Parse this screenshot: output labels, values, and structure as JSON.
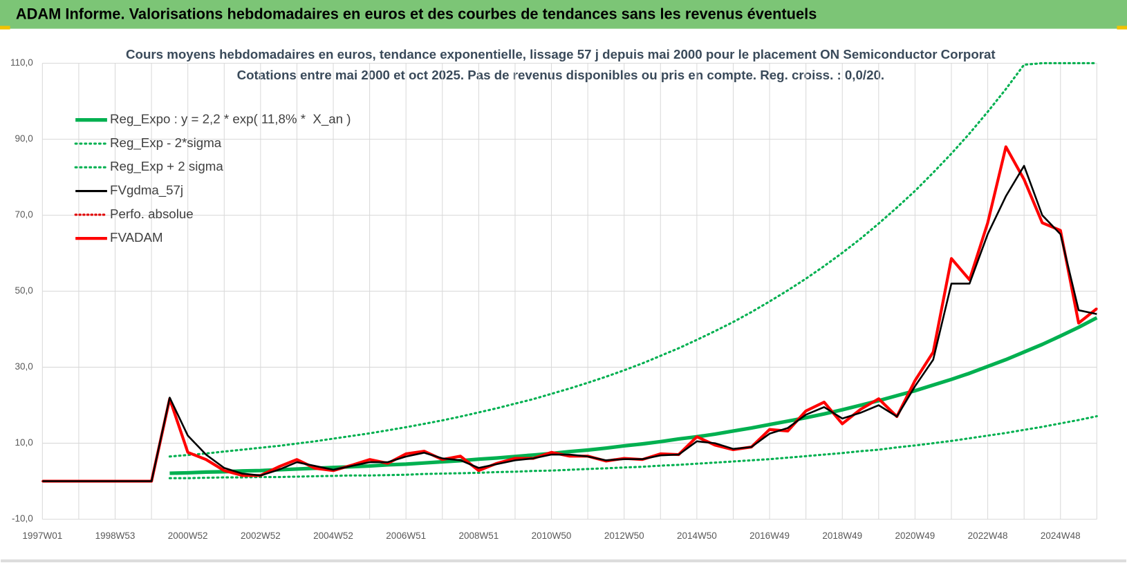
{
  "header": {
    "title": "ADAM Informe. Valorisations hebdomadaires en euros et des courbes de tendances sans les revenus éventuels"
  },
  "chart_data": {
    "type": "line",
    "title": "Cours moyens hebdomadaires en euros, tendance exponentielle, lissage 57 j depuis mai 2000 pour le placement ON Semiconductor Corporat",
    "subtitle": "Cotations entre mai 2000 et oct 2025. Pas de revenus disponibles ou pris en compte. Reg. croiss. : 0,0/20.",
    "categories": [
      "1997W01",
      null,
      null,
      null,
      "1998W53",
      null,
      null,
      null,
      "2000W52",
      null,
      null,
      null,
      "2002W52",
      null,
      null,
      null,
      "2004W52",
      null,
      null,
      null,
      "2006W51",
      null,
      null,
      null,
      "2008W51",
      null,
      null,
      null,
      "2010W50",
      null,
      null,
      null,
      "2012W50",
      null,
      null,
      null,
      "2014W50",
      null,
      null,
      null,
      "2016W49",
      null,
      null,
      null,
      "2018W49",
      null,
      null,
      null,
      "2020W49",
      null,
      null,
      null,
      "2022W48",
      null,
      null,
      null,
      "2024W48",
      null,
      null
    ],
    "series": [
      {
        "name": "Reg_Expo : y = 2,2 * exp( 11,8% *  X_an )",
        "color": "#00b050",
        "style": "solid",
        "width": 5,
        "values": [
          null,
          null,
          null,
          null,
          null,
          null,
          null,
          2.1,
          2.2,
          2.4,
          2.5,
          2.7,
          2.8,
          3.0,
          3.2,
          3.4,
          3.6,
          3.8,
          4.0,
          4.3,
          4.5,
          4.8,
          5.1,
          5.4,
          5.8,
          6.1,
          6.5,
          6.9,
          7.3,
          7.8,
          8.2,
          8.7,
          9.3,
          9.8,
          10.4,
          11.1,
          11.7,
          12.4,
          13.2,
          14.0,
          14.9,
          15.8,
          16.7,
          17.7,
          18.8,
          20.0,
          21.2,
          22.5,
          23.8,
          25.3,
          26.8,
          28.4,
          30.2,
          32.0,
          34.0,
          36.0,
          38.2,
          40.5,
          43.0
        ]
      },
      {
        "name": "Reg_Exp - 2*sigma",
        "color": "#00b050",
        "style": "dotted",
        "width": 3,
        "values": [
          null,
          null,
          null,
          null,
          null,
          null,
          null,
          0.8,
          0.8,
          0.9,
          1.0,
          1.0,
          1.1,
          1.1,
          1.2,
          1.3,
          1.4,
          1.5,
          1.5,
          1.6,
          1.7,
          1.9,
          2.0,
          2.1,
          2.2,
          2.4,
          2.5,
          2.7,
          2.8,
          3.0,
          3.2,
          3.4,
          3.6,
          3.8,
          4.1,
          4.3,
          4.6,
          4.9,
          5.2,
          5.5,
          5.8,
          6.2,
          6.6,
          7.0,
          7.4,
          7.9,
          8.3,
          8.9,
          9.4,
          10.0,
          10.6,
          11.3,
          12.0,
          12.7,
          13.5,
          14.3,
          15.2,
          16.1,
          17.1
        ]
      },
      {
        "name": "Reg_Exp + 2 sigma",
        "color": "#00b050",
        "style": "dotted",
        "width": 3,
        "values": [
          null,
          null,
          null,
          null,
          null,
          null,
          null,
          6.5,
          6.9,
          7.3,
          7.8,
          8.3,
          8.8,
          9.3,
          9.9,
          10.5,
          11.2,
          11.9,
          12.6,
          13.4,
          14.2,
          15.1,
          16.0,
          17.0,
          18.1,
          19.2,
          20.4,
          21.6,
          23.0,
          24.4,
          25.9,
          27.5,
          29.2,
          31.0,
          33.0,
          35.0,
          37.2,
          39.5,
          41.9,
          44.5,
          47.3,
          50.2,
          53.3,
          56.6,
          60.1,
          63.8,
          67.8,
          72.0,
          76.4,
          81.2,
          86.2,
          91.5,
          97.2,
          103.2,
          109.6,
          110,
          110,
          110,
          110
        ]
      },
      {
        "name": "FVgdma_57j",
        "color": "#000000",
        "style": "solid",
        "width": 2.5,
        "values": [
          0,
          0,
          0,
          0,
          0,
          0,
          0,
          22,
          12,
          7,
          3.5,
          2,
          1.5,
          3,
          5,
          4,
          3,
          4,
          5,
          5,
          6.5,
          7.5,
          6,
          5.5,
          3.5,
          4.5,
          5.5,
          6,
          7,
          7,
          6.5,
          5.5,
          5.8,
          5.8,
          6.8,
          7,
          10.5,
          10,
          8.5,
          9,
          12.5,
          14,
          17.5,
          19.5,
          16.5,
          18,
          20,
          17,
          25,
          32,
          52,
          52,
          65,
          75,
          83,
          70,
          65,
          45,
          44
        ]
      },
      {
        "name": "Perfo. absolue",
        "color": "#e00000",
        "style": "dotted",
        "width": 2.5,
        "values": [
          0,
          0,
          0,
          0,
          0,
          0,
          0,
          21.7,
          7.6,
          5.7,
          2.8,
          1.5,
          1.5,
          3.8,
          5.7,
          3.4,
          2.8,
          4.2,
          5.7,
          4.7,
          7.2,
          7.9,
          5.7,
          6.6,
          2.8,
          4.7,
          6,
          6,
          7.6,
          6.6,
          6.6,
          5.3,
          6,
          5.7,
          7.2,
          7,
          11.7,
          9.5,
          8.3,
          9,
          13.6,
          13.2,
          18.5,
          20.8,
          15.1,
          18.9,
          21.7,
          17,
          26.5,
          34,
          58.6,
          53,
          68,
          88,
          79.4,
          68,
          66,
          41.6,
          45.4
        ]
      },
      {
        "name": "FVADAM",
        "color": "#ff0000",
        "style": "solid",
        "width": 4,
        "values": [
          0,
          0,
          0,
          0,
          0,
          0,
          0,
          21.7,
          7.6,
          5.7,
          2.8,
          1.5,
          1.5,
          3.8,
          5.7,
          3.4,
          2.8,
          4.2,
          5.7,
          4.7,
          7.2,
          7.9,
          5.7,
          6.6,
          2.8,
          4.7,
          6,
          6,
          7.6,
          6.6,
          6.6,
          5.3,
          6,
          5.7,
          7.2,
          7,
          11.7,
          9.5,
          8.3,
          9,
          13.6,
          13.2,
          18.5,
          20.8,
          15.1,
          18.9,
          21.7,
          17,
          26.5,
          34,
          58.6,
          53,
          68,
          88,
          79.4,
          68,
          66,
          41.6,
          45.4
        ]
      }
    ],
    "ylim": [
      -10,
      110
    ],
    "yticks": [
      {
        "value": -10,
        "label": "-10,0"
      },
      {
        "value": 10,
        "label": "10,0"
      },
      {
        "value": 30,
        "label": "30,0"
      },
      {
        "value": 50,
        "label": "50,0"
      },
      {
        "value": 70,
        "label": "70,0"
      },
      {
        "value": 90,
        "label": "90,0"
      },
      {
        "value": 110,
        "label": "110,0"
      }
    ],
    "grid": true,
    "legend": "upper left"
  }
}
